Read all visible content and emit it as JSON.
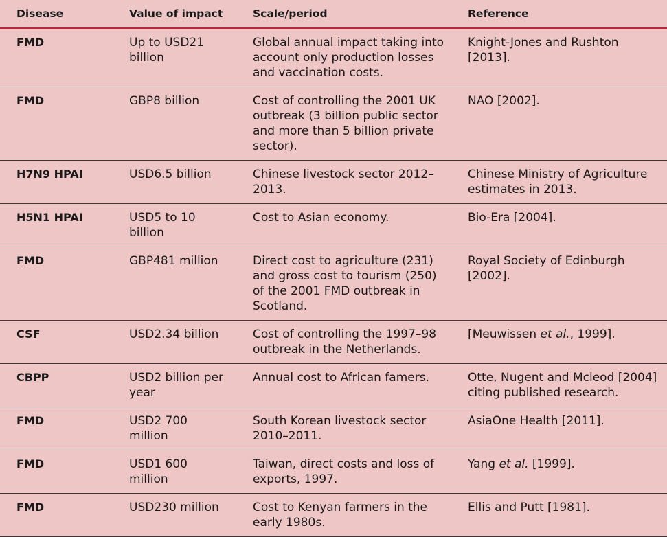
{
  "headers": {
    "disease": "Disease",
    "value": "Value of impact",
    "scale": "Scale/period",
    "reference": "Reference"
  },
  "rows": [
    {
      "disease": "FMD",
      "value": "Up to USD21 billion",
      "scale": "Global annual impact taking into account only production losses and vaccination costs.",
      "ref_pre": "Knight-Jones and Rushton [2013].",
      "ref_em": "",
      "ref_post": ""
    },
    {
      "disease": "FMD",
      "value": "GBP8 billion",
      "scale": "Cost of controlling the 2001 UK outbreak (3 billion public sector and more than 5 billion private sector).",
      "ref_pre": "NAO [2002].",
      "ref_em": "",
      "ref_post": ""
    },
    {
      "disease": "H7N9 HPAI",
      "value": "USD6.5 billion",
      "scale": "Chinese livestock sector 2012–2013.",
      "ref_pre": "Chinese Ministry of Agriculture estimates in 2013.",
      "ref_em": "",
      "ref_post": ""
    },
    {
      "disease": "H5N1 HPAI",
      "value": "USD5 to 10 billion",
      "scale": "Cost to Asian economy.",
      "ref_pre": "Bio-Era [2004].",
      "ref_em": "",
      "ref_post": ""
    },
    {
      "disease": "FMD",
      "value": "GBP481 million",
      "scale": "Direct cost to agriculture (231) and gross cost to tourism (250) of the 2001 FMD outbreak in Scotland.",
      "ref_pre": "Royal Society of Edinburgh [2002].",
      "ref_em": "",
      "ref_post": ""
    },
    {
      "disease": "CSF",
      "value": "USD2.34 billion",
      "scale": "Cost of controlling the 1997–98 outbreak in the Netherlands.",
      "ref_pre": "[Meuwissen ",
      "ref_em": "et al.",
      "ref_post": ", 1999]."
    },
    {
      "disease": "CBPP",
      "value": "USD2 billion per year",
      "scale": "Annual cost to African famers.",
      "ref_pre": "Otte, Nugent and Mcleod [2004] citing published research.",
      "ref_em": "",
      "ref_post": ""
    },
    {
      "disease": "FMD",
      "value": "USD2 700 million",
      "scale": "South Korean livestock sector 2010–2011.",
      "ref_pre": "AsiaOne Health [2011].",
      "ref_em": "",
      "ref_post": ""
    },
    {
      "disease": "FMD",
      "value": "USD1 600 million",
      "scale": "Taiwan, direct costs and loss of exports, 1997.",
      "ref_pre": "Yang ",
      "ref_em": "et al.",
      "ref_post": " [1999]."
    },
    {
      "disease": "FMD",
      "value": "USD230 million",
      "scale": "Cost to Kenyan farmers in the early 1980s.",
      "ref_pre": "Ellis and Putt [1981].",
      "ref_em": "",
      "ref_post": ""
    }
  ]
}
